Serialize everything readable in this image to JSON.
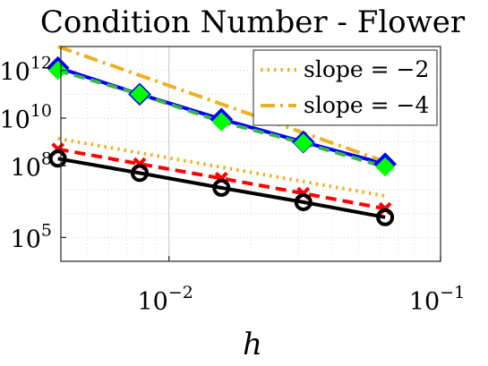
{
  "chart_data": {
    "type": "line",
    "title": "Condition Number - Flower",
    "xlabel": "h",
    "ylabel": "",
    "xscale": "log",
    "yscale": "log",
    "xlim": [
      0.004,
      0.1
    ],
    "ylim": [
      10000,
      10000000000000
    ],
    "grid": true,
    "x_ticks": [
      {
        "value": 0.01,
        "base": "10",
        "exp": "−2"
      },
      {
        "value": 0.1,
        "base": "10",
        "exp": "−1"
      }
    ],
    "y_ticks": [
      {
        "value": 100000,
        "base": "10",
        "exp": "5"
      },
      {
        "value": 100000000,
        "base": "10",
        "exp": "8"
      },
      {
        "value": 10000000000,
        "base": "10",
        "exp": "10"
      },
      {
        "value": 1000000000000,
        "base": "10",
        "exp": "12"
      }
    ],
    "legend": {
      "placement": "top-right",
      "entries": [
        {
          "label": "slope = −2",
          "color": "#EDB120",
          "dash": "dotted"
        },
        {
          "label": "slope = −4",
          "color": "#EDB120",
          "dash": "dashdot"
        }
      ]
    },
    "series": [
      {
        "x": [
          0.0039,
          0.0078,
          0.0156,
          0.03125,
          0.0625
        ],
        "y": [
          1300000000000.0,
          100000000000.0,
          9000000000.0,
          1000000000.0,
          120000000.0
        ],
        "color": "#0000FF",
        "style": "solid",
        "marker": "diamond",
        "marker_color": "#0000FF"
      },
      {
        "x": [
          0.0039,
          0.0078,
          0.0156,
          0.03125,
          0.0625
        ],
        "y": [
          1000000000000.0,
          100000000000.0,
          7000000000.0,
          900000000.0,
          90000000.0
        ],
        "color": "#3CB44B",
        "style": "dashed",
        "marker": "diamond-filled",
        "marker_color": "#00FF00"
      },
      {
        "x": [
          0.0039,
          0.0078,
          0.0156,
          0.03125,
          0.0625
        ],
        "y": [
          500000000.0,
          120000000.0,
          30000000.0,
          7000000.0,
          1600000.0
        ],
        "color": "#FF0000",
        "style": "dashed",
        "marker": "x",
        "marker_color": "#FF0000"
      },
      {
        "x": [
          0.0039,
          0.0078,
          0.0156,
          0.03125,
          0.0625
        ],
        "y": [
          200000000.0,
          50000000.0,
          12000000.0,
          3000000.0,
          700000.0
        ],
        "color": "#000000",
        "style": "solid",
        "marker": "circle",
        "marker_color": "#000000"
      },
      {
        "x": [
          0.0039,
          0.0625
        ],
        "y": [
          1400000000.0,
          5500000.0
        ],
        "color": "#EDB120",
        "style": "dotted",
        "marker": "none",
        "marker_color": "#EDB120"
      },
      {
        "x": [
          0.0039,
          0.0625
        ],
        "y": [
          10000000000000.0,
          150000000.0
        ],
        "color": "#EDB120",
        "style": "dashdot",
        "marker": "none",
        "marker_color": "#EDB120"
      }
    ]
  }
}
